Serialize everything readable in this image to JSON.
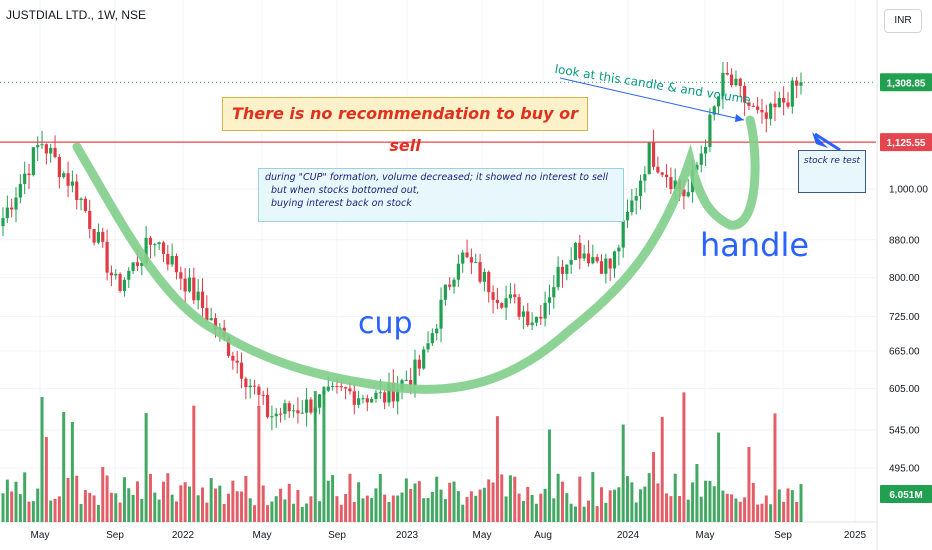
{
  "header": {
    "symbol_title": "JUSTDIAL LTD., 1W, NSE",
    "currency": "INR"
  },
  "colors": {
    "up": "#22a051",
    "down": "#e03a45",
    "vol_up": "#2f9e52",
    "vol_down": "#e04c57",
    "cup_curve": "#7fce8a",
    "price_line": "#22a051",
    "support_line": "#e5454f",
    "annotation_blue": "#2962ff",
    "grid": "#f0f3fa"
  },
  "annotations": {
    "recommendation": "There is no recommendation to buy or sell",
    "note_lines": [
      "during \"CUP\" formation, volume decreased; it showed no interest to sell",
      "but when stocks bottomed out,",
      "buying interest back on stock"
    ],
    "retest": "stock re test",
    "cup": "cup",
    "handle": "handle",
    "look": "look at this candle & and volume"
  },
  "chart_data": {
    "type": "candlestick",
    "title": "JUSTDIAL LTD., 1W, NSE",
    "currency": "INR",
    "y_scale": "log",
    "ylim": [
      455,
      1520
    ],
    "y_ticks": [
      "1,000.00",
      "880.00",
      "800.00",
      "725.00",
      "665.00",
      "605.00",
      "545.00",
      "495.00"
    ],
    "x_ticks": [
      "May",
      "Sep",
      "2022",
      "May",
      "Sep",
      "2023",
      "May",
      "Aug",
      "2024",
      "May",
      "Sep",
      "2025"
    ],
    "price_labels": [
      {
        "text": "1,308.85",
        "value": 1308.85,
        "kind": "last"
      },
      {
        "text": "1,125.55",
        "value": 1125.55,
        "kind": "support"
      }
    ],
    "volume_label": "6.051M",
    "anchors": [
      {
        "label": "May 2021",
        "close": 930
      },
      {
        "label": "Jul 2021",
        "close": 1130
      },
      {
        "label": "Sep 2021",
        "close": 985
      },
      {
        "label": "Nov 2021",
        "close": 780
      },
      {
        "label": "Jan 2022",
        "close": 885
      },
      {
        "label": "Apr 2022",
        "close": 770
      },
      {
        "label": "Jun 2022",
        "close": 665
      },
      {
        "label": "Aug 2022",
        "close": 565
      },
      {
        "label": "Oct 2022",
        "close": 580
      },
      {
        "label": "Dec 2022",
        "close": 600
      },
      {
        "label": "Feb 2023",
        "close": 590
      },
      {
        "label": "Apr 2023",
        "close": 640
      },
      {
        "label": "Jun 2023",
        "close": 850
      },
      {
        "label": "Aug 2023",
        "close": 770
      },
      {
        "label": "Oct 2023",
        "close": 720
      },
      {
        "label": "Dec 2023",
        "close": 870
      },
      {
        "label": "Mar 2024",
        "close": 820
      },
      {
        "label": "Apr 2024",
        "close": 1100
      },
      {
        "label": "Jun 2024",
        "close": 980
      },
      {
        "label": "Jul 2024",
        "close": 1330
      },
      {
        "label": "Sep 2024",
        "close": 1180
      },
      {
        "label": "Sep 2024 (last)",
        "close": 1308.85
      }
    ]
  }
}
